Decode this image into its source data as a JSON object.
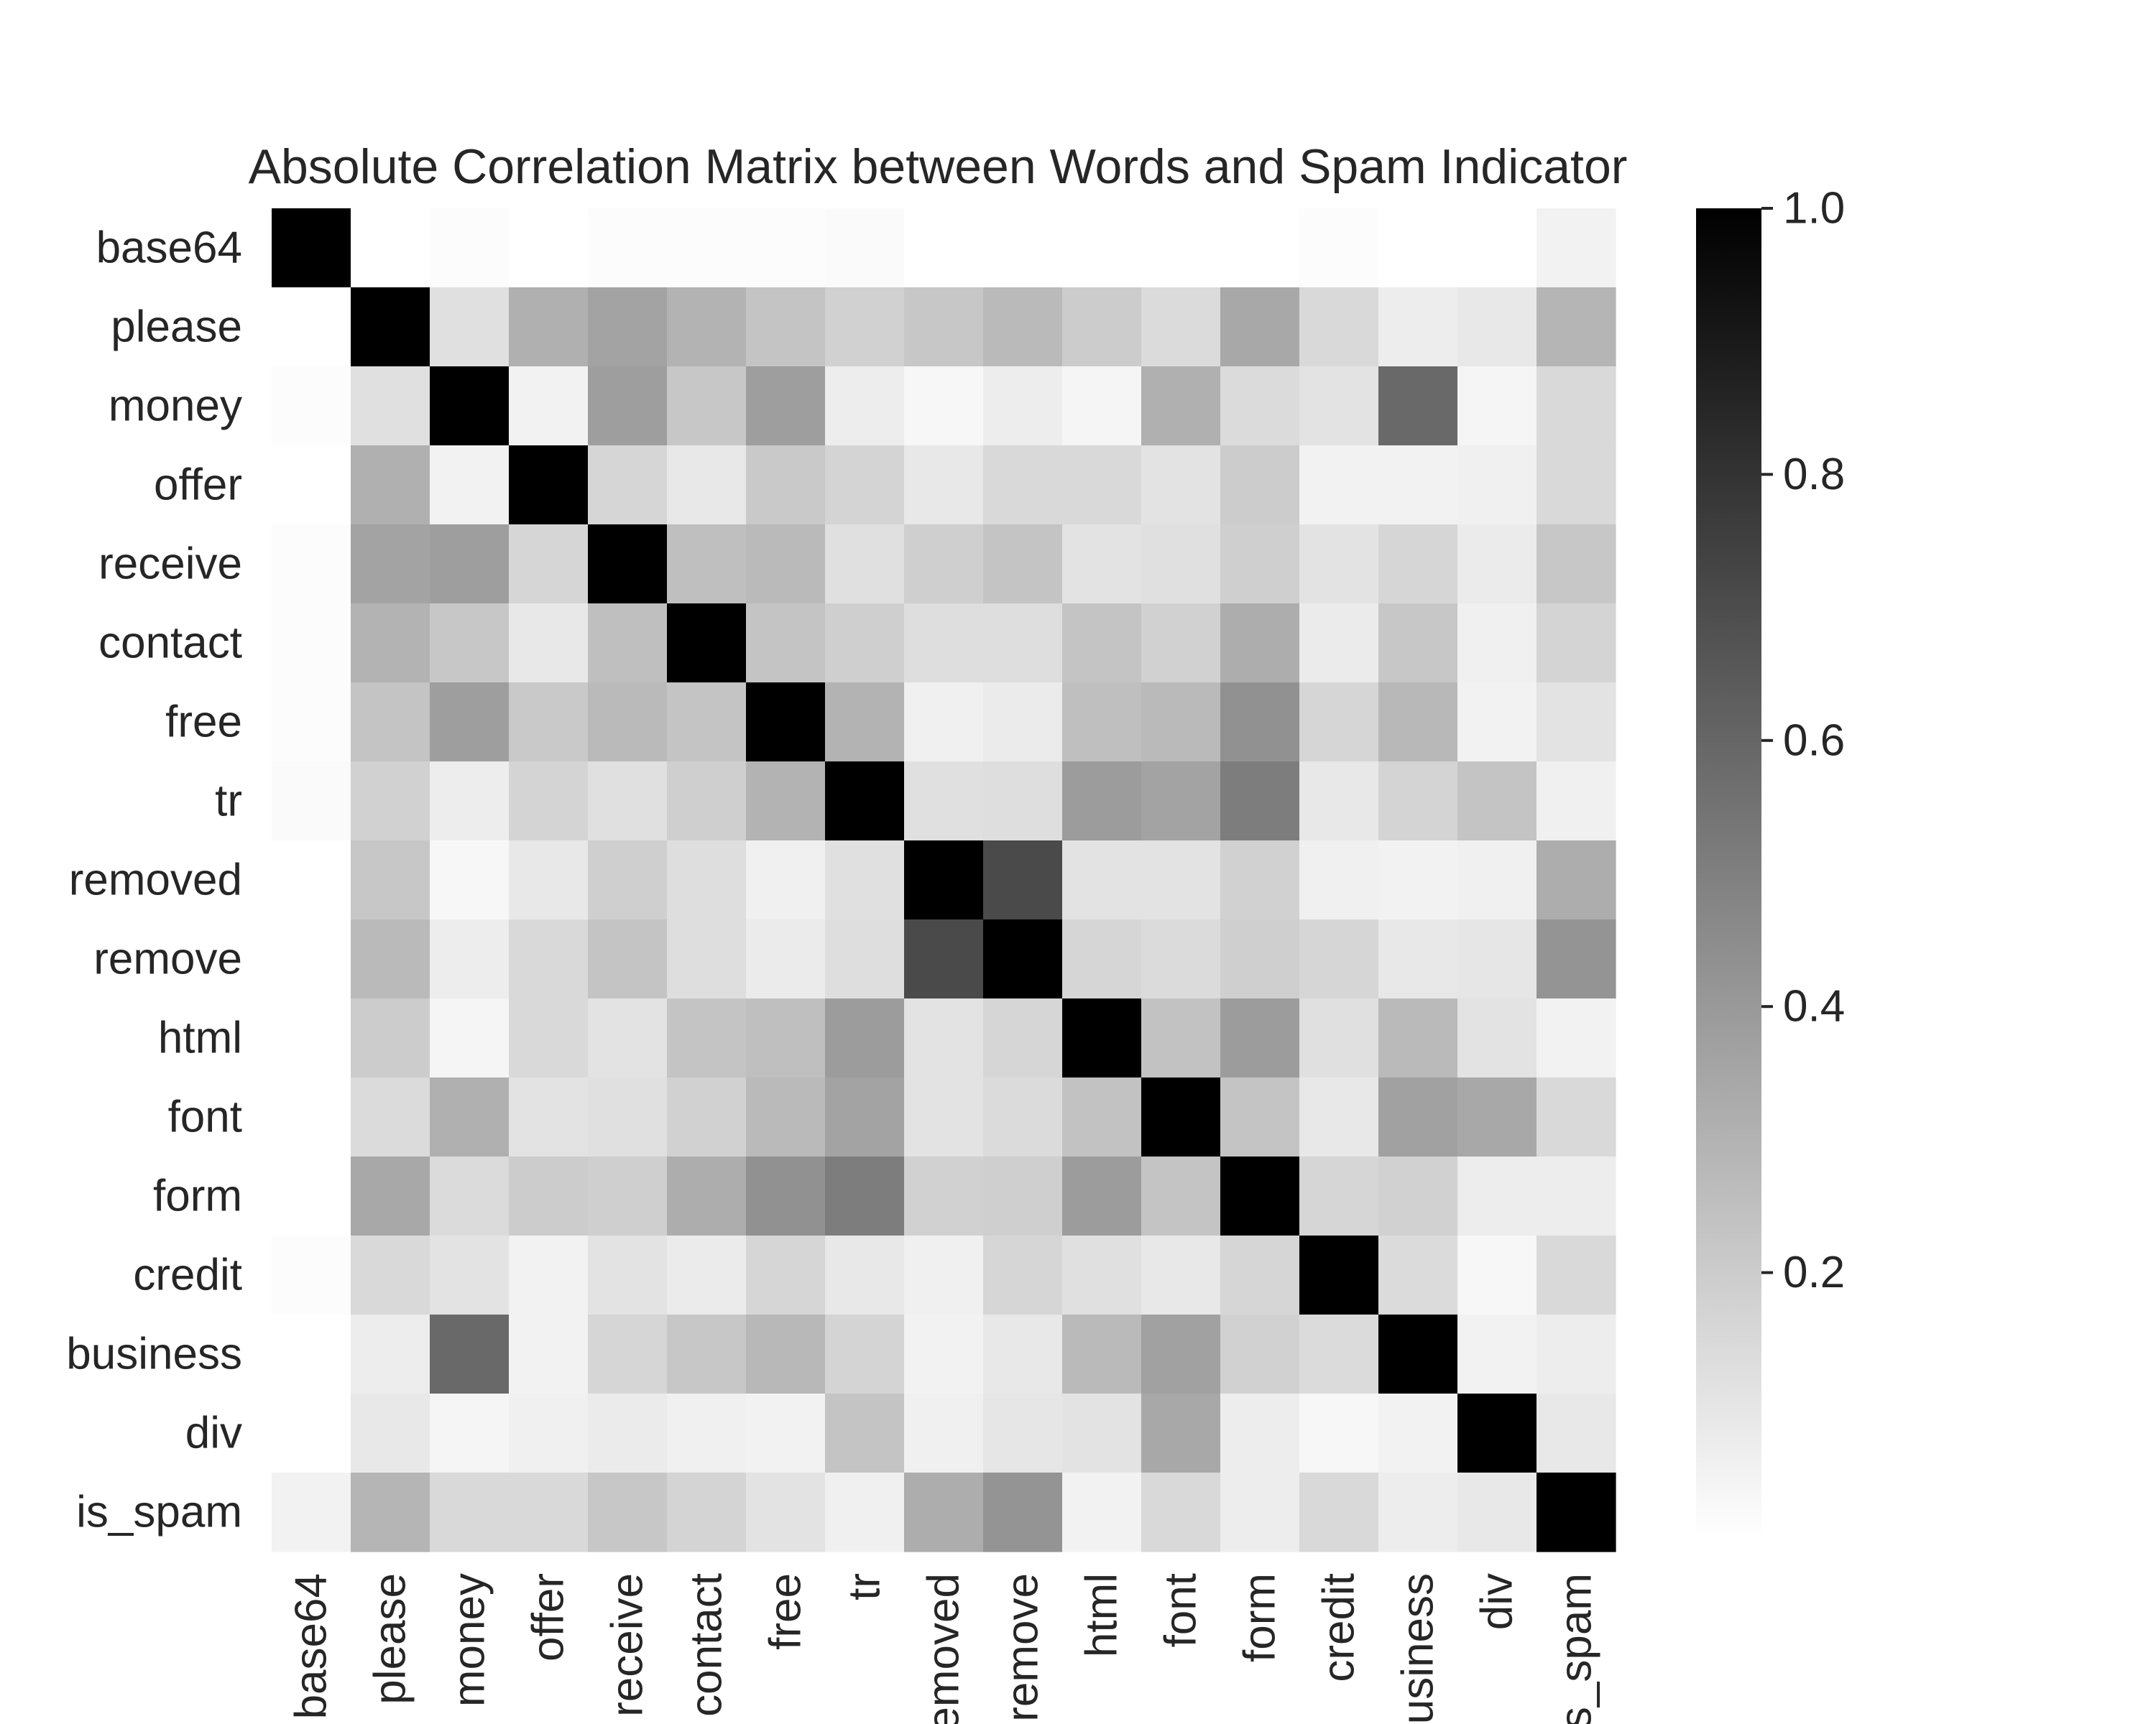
{
  "chart_data": {
    "type": "heatmap",
    "title": "Absolute Correlation Matrix between Words and Spam Indicator",
    "xlabel": "",
    "ylabel": "",
    "labels": [
      "base64",
      "please",
      "money",
      "offer",
      "receive",
      "contact",
      "free",
      "tr",
      "removed",
      "remove",
      "html",
      "font",
      "form",
      "credit",
      "business",
      "div",
      "is_spam"
    ],
    "matrix": [
      [
        1.0,
        0.0,
        0.01,
        0.0,
        0.01,
        0.01,
        0.01,
        0.02,
        0.0,
        0.0,
        0.0,
        0.0,
        0.0,
        0.01,
        0.0,
        0.0,
        0.05
      ],
      [
        0.0,
        1.0,
        0.12,
        0.31,
        0.36,
        0.3,
        0.23,
        0.18,
        0.22,
        0.27,
        0.2,
        0.14,
        0.34,
        0.15,
        0.07,
        0.09,
        0.29
      ],
      [
        0.01,
        0.12,
        1.0,
        0.05,
        0.38,
        0.22,
        0.38,
        0.07,
        0.03,
        0.07,
        0.04,
        0.31,
        0.14,
        0.11,
        0.59,
        0.04,
        0.15
      ],
      [
        0.0,
        0.31,
        0.05,
        1.0,
        0.16,
        0.09,
        0.21,
        0.17,
        0.09,
        0.15,
        0.15,
        0.11,
        0.2,
        0.05,
        0.05,
        0.06,
        0.15
      ],
      [
        0.01,
        0.36,
        0.38,
        0.16,
        1.0,
        0.25,
        0.27,
        0.12,
        0.19,
        0.23,
        0.11,
        0.12,
        0.19,
        0.11,
        0.16,
        0.08,
        0.22
      ],
      [
        0.01,
        0.3,
        0.22,
        0.09,
        0.25,
        1.0,
        0.23,
        0.19,
        0.13,
        0.13,
        0.23,
        0.18,
        0.32,
        0.08,
        0.22,
        0.06,
        0.17
      ],
      [
        0.01,
        0.23,
        0.38,
        0.21,
        0.27,
        0.23,
        1.0,
        0.3,
        0.06,
        0.08,
        0.25,
        0.27,
        0.43,
        0.16,
        0.28,
        0.05,
        0.11
      ],
      [
        0.02,
        0.18,
        0.07,
        0.17,
        0.12,
        0.19,
        0.3,
        1.0,
        0.12,
        0.13,
        0.39,
        0.36,
        0.51,
        0.09,
        0.17,
        0.23,
        0.06
      ],
      [
        0.0,
        0.22,
        0.03,
        0.09,
        0.19,
        0.13,
        0.06,
        0.12,
        1.0,
        0.71,
        0.11,
        0.11,
        0.18,
        0.06,
        0.05,
        0.06,
        0.32
      ],
      [
        0.0,
        0.27,
        0.07,
        0.15,
        0.23,
        0.13,
        0.08,
        0.13,
        0.71,
        1.0,
        0.16,
        0.14,
        0.19,
        0.16,
        0.09,
        0.1,
        0.42
      ],
      [
        0.0,
        0.2,
        0.04,
        0.15,
        0.11,
        0.23,
        0.25,
        0.39,
        0.11,
        0.16,
        1.0,
        0.24,
        0.39,
        0.12,
        0.27,
        0.11,
        0.05
      ],
      [
        0.0,
        0.14,
        0.31,
        0.11,
        0.12,
        0.18,
        0.27,
        0.36,
        0.11,
        0.14,
        0.24,
        1.0,
        0.23,
        0.09,
        0.37,
        0.34,
        0.15
      ],
      [
        0.0,
        0.34,
        0.14,
        0.2,
        0.19,
        0.32,
        0.43,
        0.51,
        0.18,
        0.19,
        0.39,
        0.23,
        1.0,
        0.16,
        0.18,
        0.07,
        0.07
      ],
      [
        0.01,
        0.15,
        0.11,
        0.05,
        0.11,
        0.08,
        0.16,
        0.09,
        0.06,
        0.16,
        0.12,
        0.09,
        0.16,
        1.0,
        0.14,
        0.03,
        0.15
      ],
      [
        0.0,
        0.07,
        0.59,
        0.05,
        0.16,
        0.22,
        0.28,
        0.17,
        0.05,
        0.09,
        0.27,
        0.37,
        0.18,
        0.14,
        1.0,
        0.05,
        0.07
      ],
      [
        0.0,
        0.09,
        0.04,
        0.06,
        0.08,
        0.06,
        0.05,
        0.23,
        0.06,
        0.1,
        0.11,
        0.34,
        0.07,
        0.03,
        0.05,
        1.0,
        0.09
      ],
      [
        0.05,
        0.29,
        0.15,
        0.15,
        0.22,
        0.17,
        0.11,
        0.06,
        0.32,
        0.42,
        0.05,
        0.15,
        0.07,
        0.15,
        0.07,
        0.09,
        1.0
      ]
    ],
    "colorscale": "greys",
    "colorbar": {
      "range": [
        0.0,
        1.0
      ],
      "ticks": [
        0.2,
        0.4,
        0.6,
        0.8,
        1.0
      ],
      "tick_labels": [
        "0.2",
        "0.4",
        "0.6",
        "0.8",
        "1.0"
      ]
    }
  }
}
